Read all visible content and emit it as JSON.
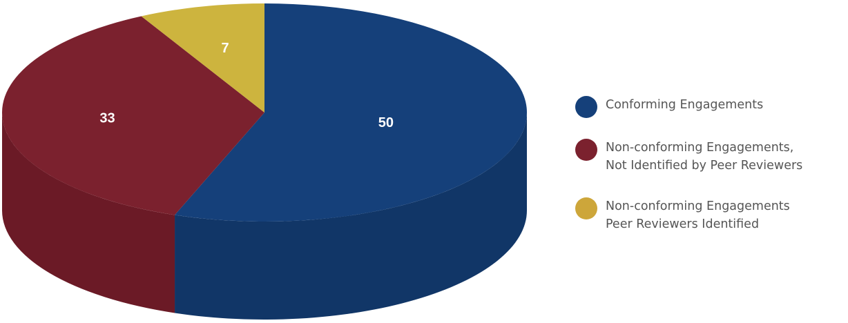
{
  "chart_data": {
    "type": "pie",
    "three_d": true,
    "legend_position": "right",
    "slices": [
      {
        "label": "Conforming Engagements",
        "value": 50,
        "color": "#15407a",
        "side_color": "#113667"
      },
      {
        "label": "Non-conforming Engagements, Not Identified by Peer Reviewers",
        "value": 33,
        "color": "#7b212e",
        "side_color": "#6b1a26"
      },
      {
        "label": "Non-conforming Engagements Peer Reviewers Identified",
        "value": 7,
        "color": "#cdb43e",
        "side_color": "#b39c30"
      }
    ],
    "data_labels": [
      "50",
      "33",
      "7"
    ]
  },
  "legend": {
    "items": [
      {
        "lines": [
          "Conforming Engagements"
        ],
        "color": "#15407a"
      },
      {
        "lines": [
          "Non-conforming Engagements,",
          "Not Identified by Peer Reviewers"
        ],
        "color": "#7b212e"
      },
      {
        "lines": [
          "Non-conforming Engagements",
          "Peer Reviewers Identified"
        ],
        "color": "#cda63a"
      }
    ]
  }
}
